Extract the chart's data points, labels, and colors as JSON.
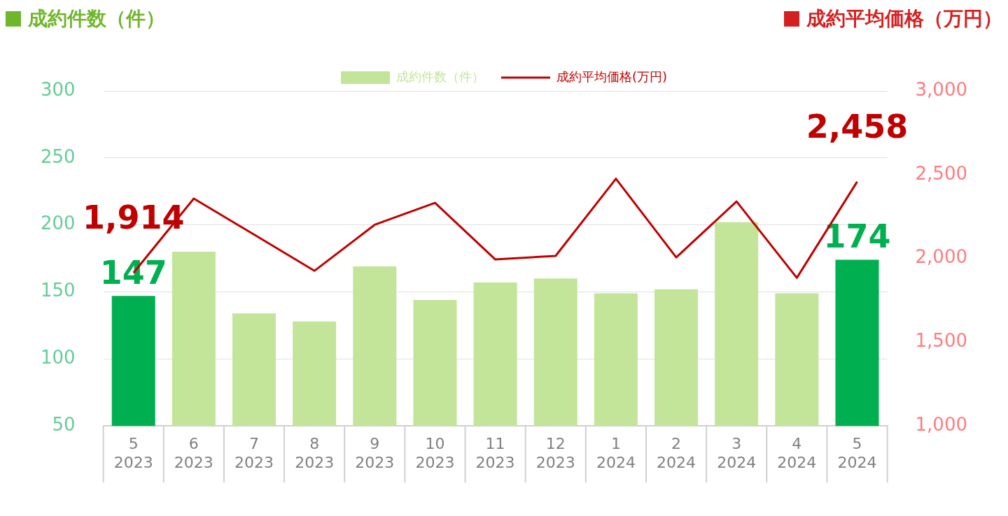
{
  "chart_data": {
    "type": "bar",
    "ylabel": "成約件数（件）",
    "y2label": "成約平均価格（万円）",
    "categories": [
      "5\n2023",
      "6\n2023",
      "7\n2023",
      "8\n2023",
      "9\n2023",
      "10\n2023",
      "11\n2023",
      "12\n2023",
      "1\n2024",
      "2\n2024",
      "3\n2024",
      "4\n2024",
      "5\n2024"
    ],
    "series": [
      {
        "name": "成約件数（件）",
        "colors": [
          "#00b050",
          "#c3e59a",
          "#c3e59a",
          "#c3e59a",
          "#c3e59a",
          "#c3e59a",
          "#c3e59a",
          "#c3e59a",
          "#c3e59a",
          "#c3e59a",
          "#c3e59a",
          "#c3e59a",
          "#00b050"
        ],
        "color": "#c3e59a",
        "values": [
          147,
          180,
          134,
          128,
          169,
          144,
          157,
          160,
          149,
          152,
          202,
          149,
          174
        ],
        "value_labels": [
          "147",
          null,
          null,
          null,
          null,
          null,
          null,
          null,
          null,
          null,
          null,
          null,
          "174"
        ]
      },
      {
        "name": "成約平均価格(万円)",
        "type": "line",
        "axis": "y2",
        "color": "#c00000",
        "values": [
          1914,
          2357,
          2142,
          1926,
          2201,
          2332,
          1994,
          2015,
          2476,
          2006,
          2340,
          1884,
          2458
        ],
        "value_labels": [
          "1,914",
          null,
          null,
          null,
          null,
          null,
          null,
          null,
          null,
          null,
          null,
          null,
          "2,458"
        ]
      }
    ],
    "ylim": [
      50,
      300
    ],
    "yticks": [
      50,
      100,
      150,
      200,
      250,
      300
    ],
    "y2lim": [
      1000,
      3000
    ],
    "y2ticks": [
      {
        "value": 1000,
        "label": "1,000"
      },
      {
        "value": 1500,
        "label": "1,500"
      },
      {
        "value": 2000,
        "label": "2,000"
      },
      {
        "value": 2500,
        "label": "2,500"
      },
      {
        "value": 3000,
        "label": "3,000"
      }
    ],
    "grid": "y",
    "legend": "top",
    "marker": "none"
  }
}
